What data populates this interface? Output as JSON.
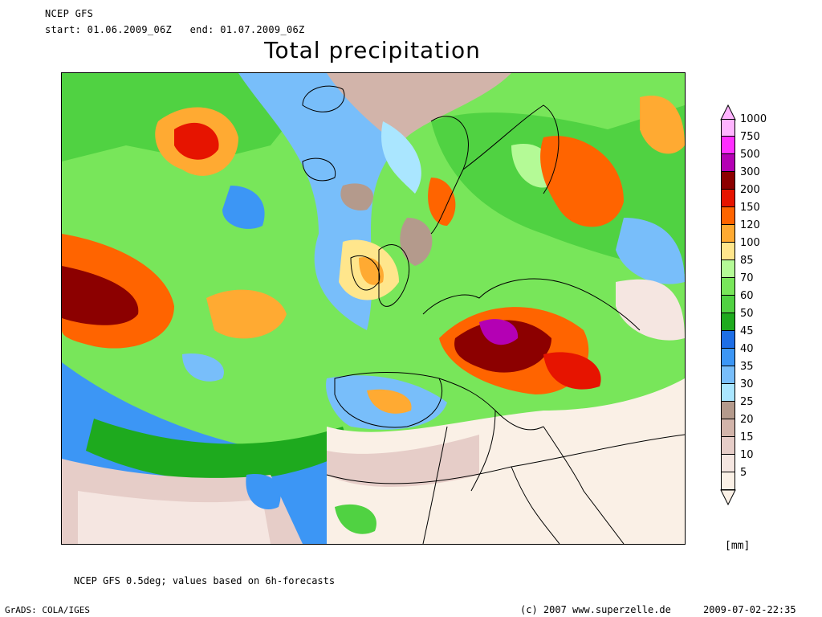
{
  "header": {
    "model": "NCEP GFS",
    "period": "start: 01.06.2009_06Z   end: 01.07.2009_06Z",
    "title": "Total precipitation"
  },
  "legend": {
    "unit": "[mm]",
    "levels": [
      {
        "label": "1000",
        "color": "#ffb4ff"
      },
      {
        "label": "750",
        "color": "#ff2eff"
      },
      {
        "label": "500",
        "color": "#b400b4"
      },
      {
        "label": "300",
        "color": "#8c0000"
      },
      {
        "label": "200",
        "color": "#e61400"
      },
      {
        "label": "150",
        "color": "#ff6400"
      },
      {
        "label": "120",
        "color": "#ffaa32"
      },
      {
        "label": "100",
        "color": "#ffe68c"
      },
      {
        "label": "85",
        "color": "#b4fa96"
      },
      {
        "label": "70",
        "color": "#78e65a"
      },
      {
        "label": "60",
        "color": "#50d242"
      },
      {
        "label": "50",
        "color": "#1eaa1e"
      },
      {
        "label": "45",
        "color": "#1e6ee6"
      },
      {
        "label": "40",
        "color": "#3c96f5"
      },
      {
        "label": "35",
        "color": "#78befa"
      },
      {
        "label": "30",
        "color": "#aae6ff"
      },
      {
        "label": "25",
        "color": "#b49a8c"
      },
      {
        "label": "20",
        "color": "#d2b4aa"
      },
      {
        "label": "15",
        "color": "#e6cdc8"
      },
      {
        "label": "10",
        "color": "#f5e6e1"
      },
      {
        "label": "5",
        "color": "#faf0e6"
      }
    ]
  },
  "footer": {
    "note": "NCEP GFS 0.5deg; values based on 6h-forecasts",
    "software": "GrADS: COLA/IGES",
    "copyright": "(c) 2007 www.superzelle.de",
    "timestamp": "2009-07-02-22:35"
  }
}
